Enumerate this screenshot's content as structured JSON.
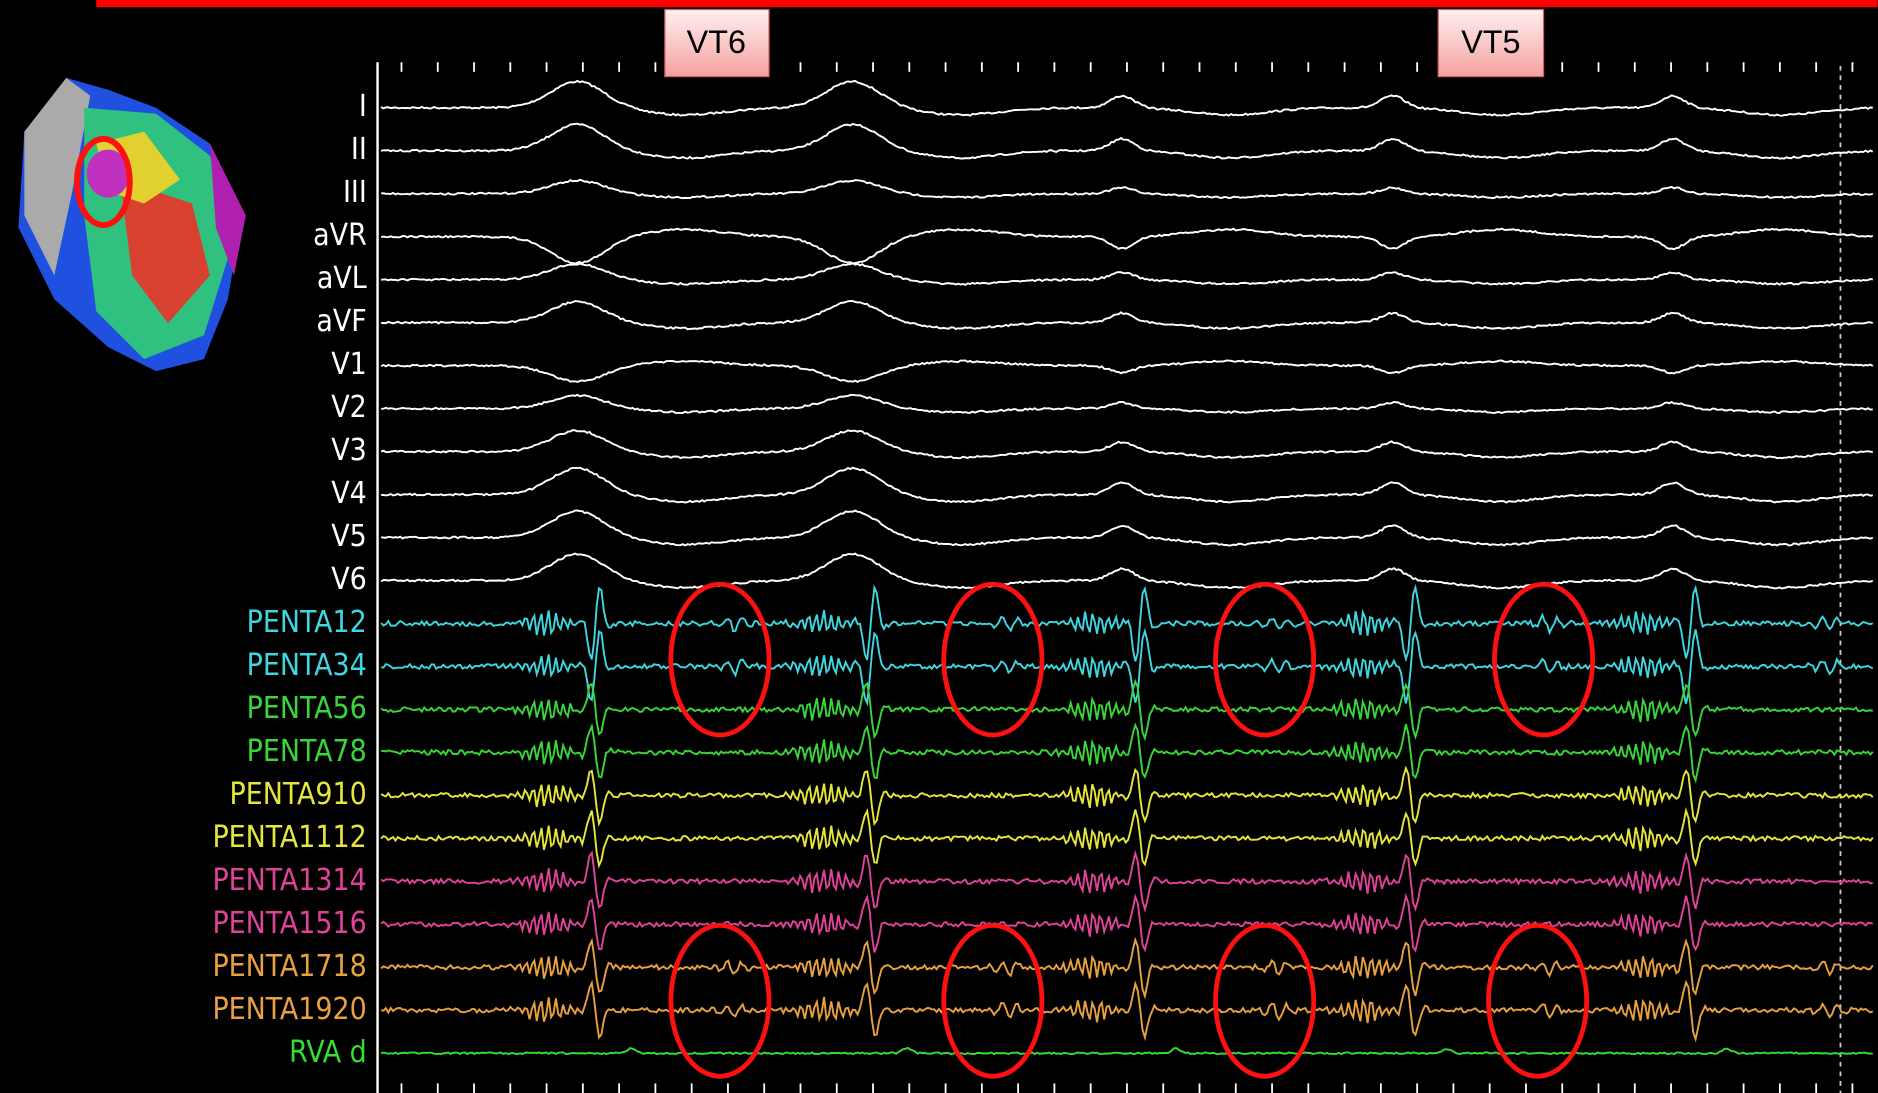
{
  "markers": [
    "VT6",
    "VT5"
  ],
  "channels": [
    {
      "name": "I",
      "color": "#ffffff"
    },
    {
      "name": "II",
      "color": "#ffffff"
    },
    {
      "name": "III",
      "color": "#ffffff"
    },
    {
      "name": "aVR",
      "color": "#ffffff"
    },
    {
      "name": "aVL",
      "color": "#ffffff"
    },
    {
      "name": "aVF",
      "color": "#ffffff"
    },
    {
      "name": "V1",
      "color": "#ffffff"
    },
    {
      "name": "V2",
      "color": "#ffffff"
    },
    {
      "name": "V3",
      "color": "#ffffff"
    },
    {
      "name": "V4",
      "color": "#ffffff"
    },
    {
      "name": "V5",
      "color": "#ffffff"
    },
    {
      "name": "V6",
      "color": "#ffffff"
    },
    {
      "name": "PENTA12",
      "color": "#3fd6e0"
    },
    {
      "name": "PENTA34",
      "color": "#3fd6e0"
    },
    {
      "name": "PENTA56",
      "color": "#39d63a"
    },
    {
      "name": "PENTA78",
      "color": "#39d63a"
    },
    {
      "name": "PENTA910",
      "color": "#e6e63a"
    },
    {
      "name": "PENTA1112",
      "color": "#e6e63a"
    },
    {
      "name": "PENTA1314",
      "color": "#e0429a"
    },
    {
      "name": "PENTA1516",
      "color": "#e0429a"
    },
    {
      "name": "PENTA1718",
      "color": "#e8a040"
    },
    {
      "name": "PENTA1920",
      "color": "#e8a040"
    },
    {
      "name": "RVA d",
      "color": "#33dd33"
    }
  ]
}
